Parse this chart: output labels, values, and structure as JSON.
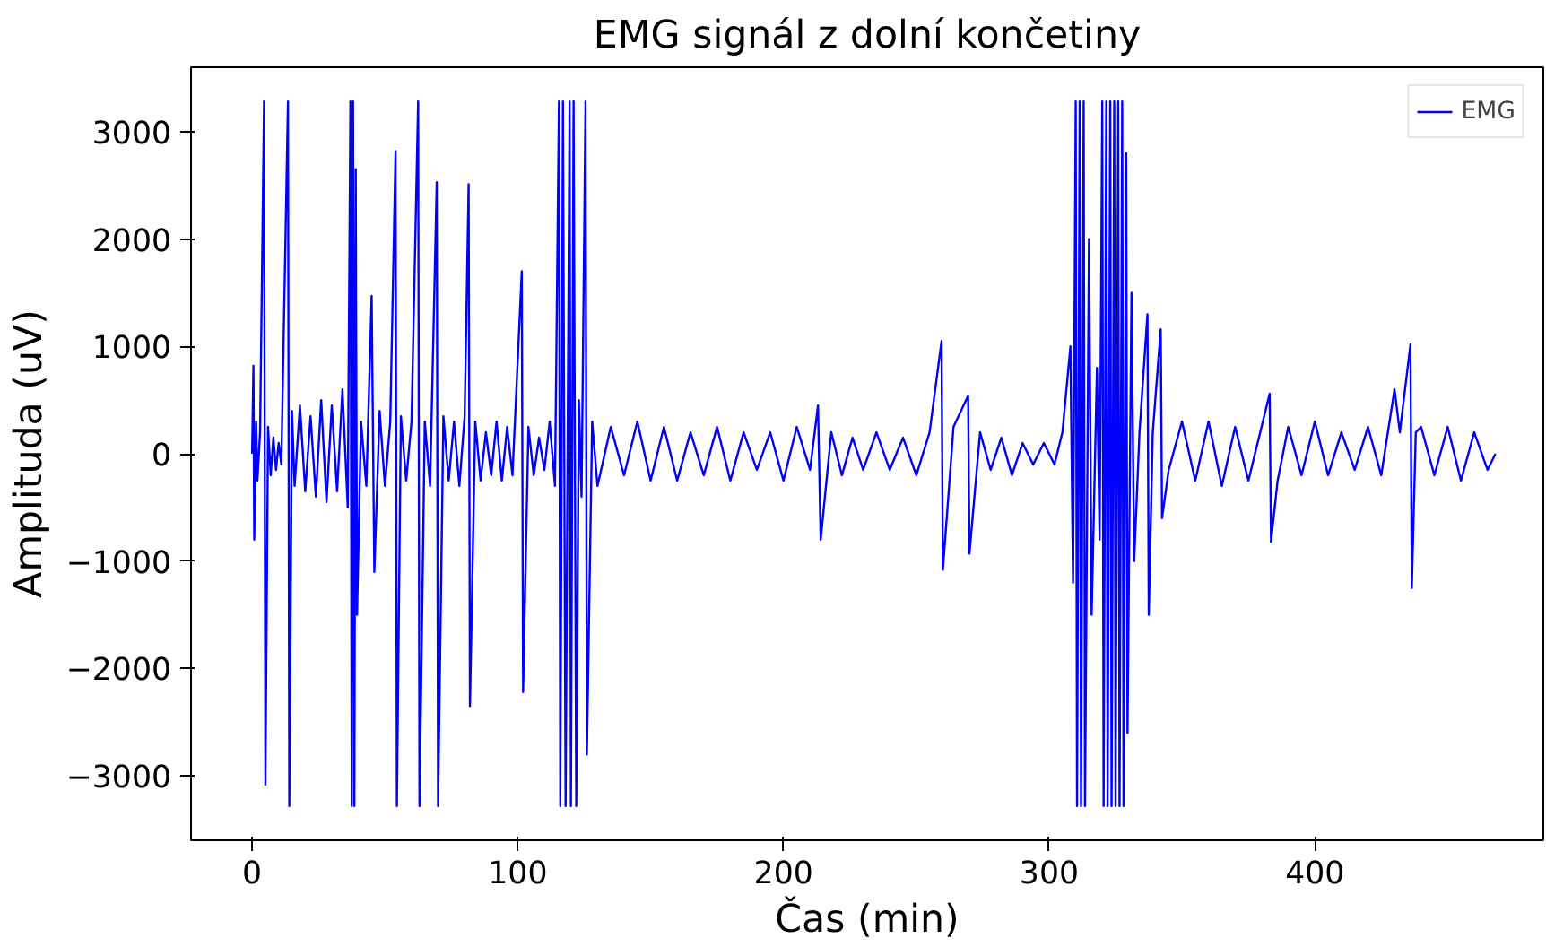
{
  "chart_data": {
    "type": "line",
    "title": "EMG signál z dolní končetiny",
    "xlabel": "Čas (min)",
    "ylabel": "Amplituda (uV)",
    "xlim": [
      -23,
      486
    ],
    "ylim": [
      -3600,
      3600
    ],
    "xticks": [
      0,
      100,
      200,
      300,
      400
    ],
    "yticks": [
      -3000,
      -2000,
      -1000,
      0,
      1000,
      2000,
      3000
    ],
    "legend": "top right",
    "grid": false,
    "line_style": "solid",
    "series": [
      {
        "name": "EMG",
        "color": "#0000ff",
        "x": [
          0,
          0.5,
          0.8,
          1.5,
          2,
          3,
          4.5,
          5,
          6,
          7,
          8,
          9,
          10,
          11,
          13.5,
          14,
          15,
          16,
          18,
          20,
          22,
          24,
          26,
          28,
          30,
          32,
          34,
          36,
          37,
          37.5,
          38,
          38.5,
          39,
          39.5,
          41,
          43,
          45,
          46,
          48,
          50,
          52,
          54,
          54.5,
          56,
          58,
          60,
          62.5,
          63,
          65,
          67,
          69.5,
          70,
          72,
          74,
          76,
          78,
          80,
          81.5,
          82,
          84,
          86,
          88,
          90,
          92,
          94,
          96,
          98,
          101.5,
          102,
          104,
          106,
          108,
          110,
          112,
          114,
          115.5,
          116,
          117,
          118,
          119.5,
          120,
          121,
          122,
          123,
          124,
          125.5,
          126,
          128,
          130,
          135,
          140,
          145,
          150,
          155,
          160,
          165,
          170,
          175,
          180,
          185,
          190,
          195,
          200,
          205,
          210,
          213,
          214,
          218,
          222,
          226,
          230,
          235,
          240,
          245,
          250,
          255,
          259.5,
          260,
          264,
          269.5,
          270,
          274,
          278,
          282,
          286,
          290,
          294,
          298,
          302,
          305,
          308,
          309,
          310,
          310.5,
          311.5,
          312,
          313,
          313.5,
          315,
          316,
          318,
          319,
          320,
          320.5,
          321.5,
          322,
          323,
          323.5,
          324.5,
          325,
          326,
          326.5,
          327.5,
          328,
          329,
          329.5,
          331,
          332,
          334,
          337,
          337.5,
          339,
          342,
          342.5,
          345,
          350,
          355,
          360,
          365,
          370,
          375,
          383,
          383.5,
          386,
          390,
          395,
          400,
          405,
          410,
          415,
          420,
          425,
          430,
          432,
          436,
          436.5,
          438,
          440,
          445,
          450,
          455,
          460,
          465,
          468
        ],
        "values": [
          0,
          820,
          -800,
          300,
          -250,
          200,
          3280,
          -3080,
          250,
          -200,
          150,
          -150,
          100,
          -100,
          3280,
          -3280,
          400,
          -300,
          450,
          -350,
          350,
          -400,
          500,
          -450,
          450,
          -350,
          600,
          -500,
          3280,
          -3280,
          3280,
          -3280,
          2650,
          -1500,
          300,
          -300,
          1470,
          -1100,
          400,
          -300,
          300,
          2820,
          -3280,
          350,
          -250,
          300,
          3280,
          -3280,
          300,
          -300,
          2530,
          -3280,
          350,
          -250,
          300,
          -300,
          350,
          2510,
          -2350,
          300,
          -250,
          200,
          -200,
          300,
          -250,
          250,
          -200,
          1700,
          -2220,
          250,
          -200,
          150,
          -150,
          300,
          -300,
          3280,
          -3280,
          3280,
          -3280,
          3280,
          -3280,
          3280,
          -3280,
          500,
          -400,
          3280,
          -2800,
          300,
          -300,
          250,
          -200,
          300,
          -250,
          250,
          -250,
          200,
          -200,
          250,
          -250,
          200,
          -150,
          200,
          -250,
          250,
          -150,
          450,
          -800,
          200,
          -200,
          150,
          -150,
          200,
          -150,
          150,
          -200,
          200,
          1050,
          -1080,
          250,
          540,
          -930,
          200,
          -150,
          150,
          -200,
          100,
          -100,
          100,
          -100,
          200,
          1000,
          -1200,
          3280,
          -3280,
          3280,
          -3280,
          3280,
          -3280,
          2000,
          -1500,
          800,
          -800,
          3280,
          -3280,
          3280,
          -3280,
          3280,
          -3280,
          3280,
          -3280,
          3280,
          -3280,
          3280,
          -3280,
          2800,
          -2600,
          1500,
          -1000,
          200,
          1300,
          -1500,
          200,
          1160,
          -600,
          -150,
          300,
          -250,
          300,
          -300,
          250,
          -250,
          560,
          -820,
          -250,
          250,
          -200,
          300,
          -200,
          200,
          -150,
          250,
          -200,
          600,
          200,
          1020,
          -1250,
          200,
          250,
          -200,
          250,
          -250,
          200,
          -150,
          0
        ]
      }
    ]
  }
}
